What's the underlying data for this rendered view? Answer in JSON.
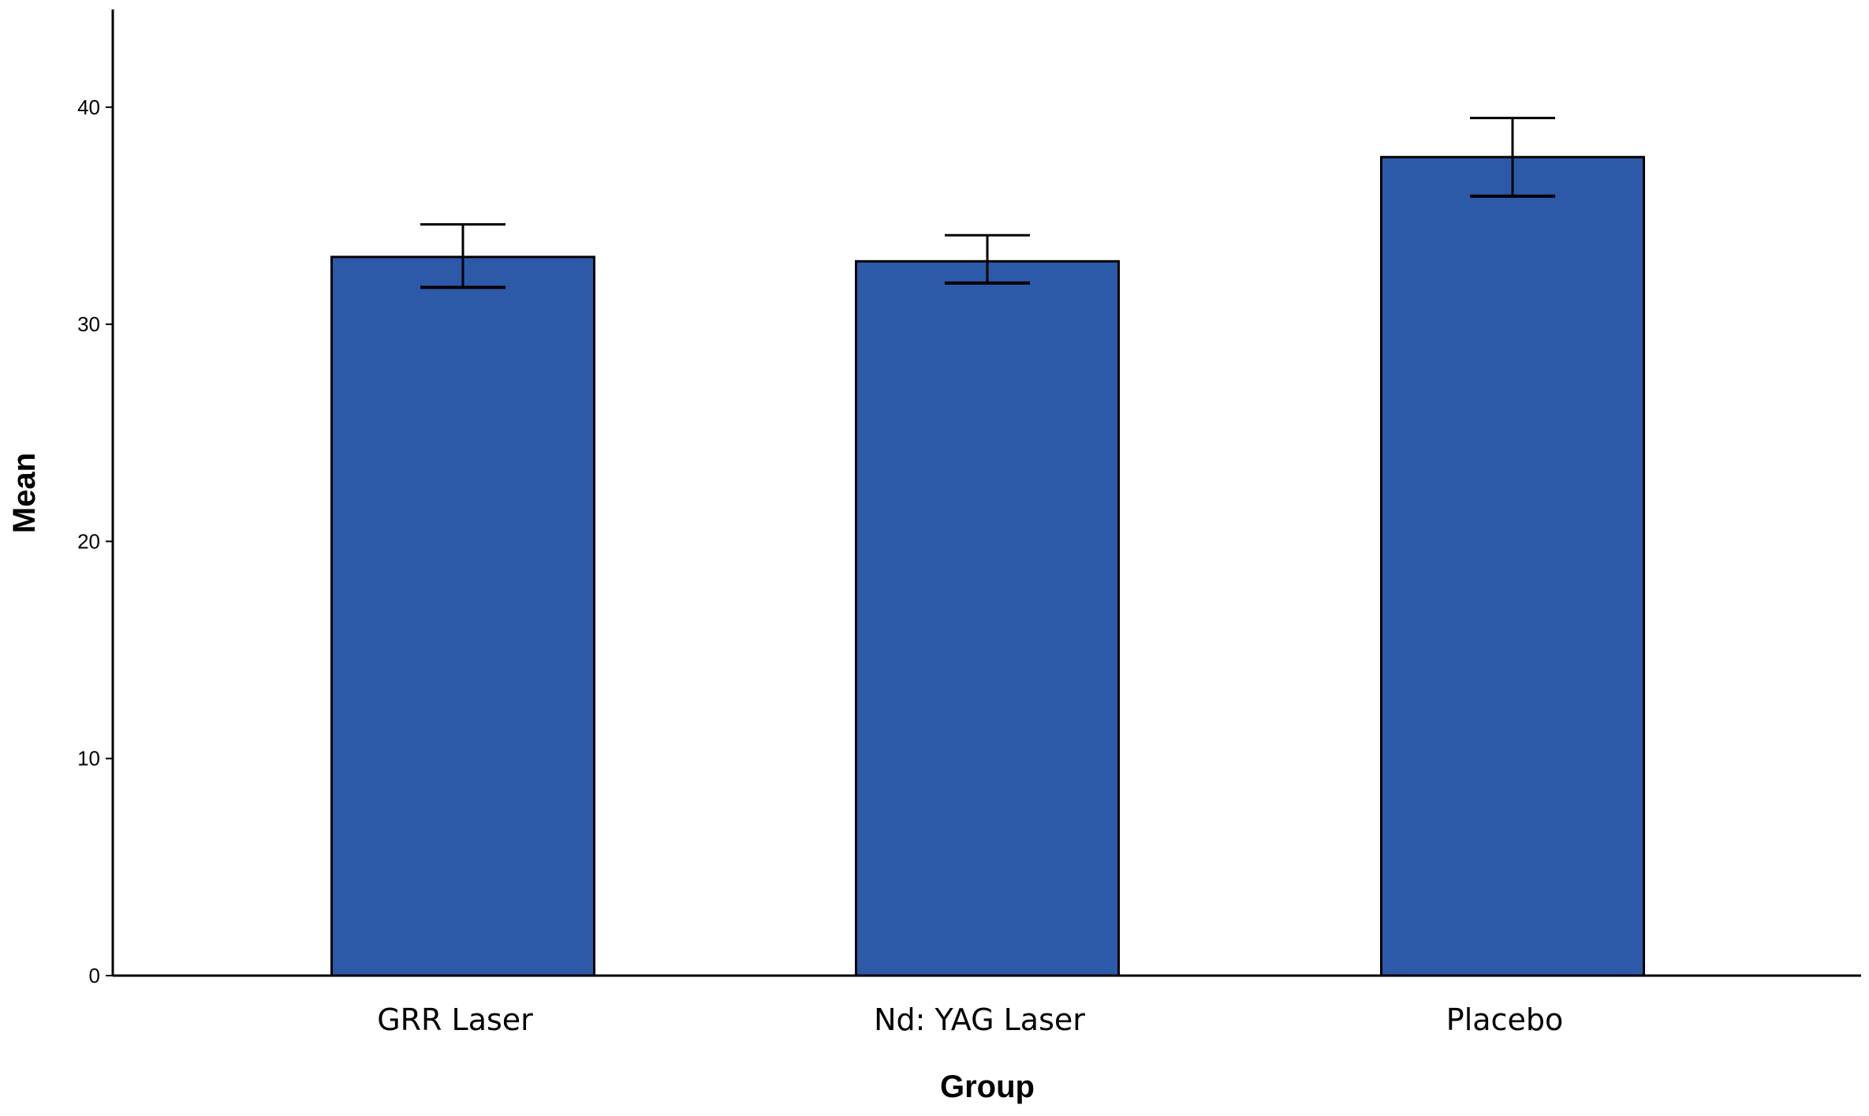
{
  "chart_data": {
    "type": "bar",
    "title": "",
    "xlabel": "Group",
    "ylabel": "Mean",
    "categories": [
      "GRR Laser",
      "Nd: YAG Laser",
      "Placebo"
    ],
    "values": [
      33.1,
      32.9,
      37.7
    ],
    "error_low": [
      31.7,
      31.9,
      35.9
    ],
    "error_high": [
      34.6,
      34.1,
      39.5
    ],
    "ylim": [
      0,
      44.5
    ],
    "yticks": [
      0,
      10,
      20,
      30,
      40
    ],
    "grid": false,
    "legend": "none",
    "bar_color": "#2d59a9",
    "bar_edge_color": "#000000",
    "axis_color": "#000000"
  }
}
